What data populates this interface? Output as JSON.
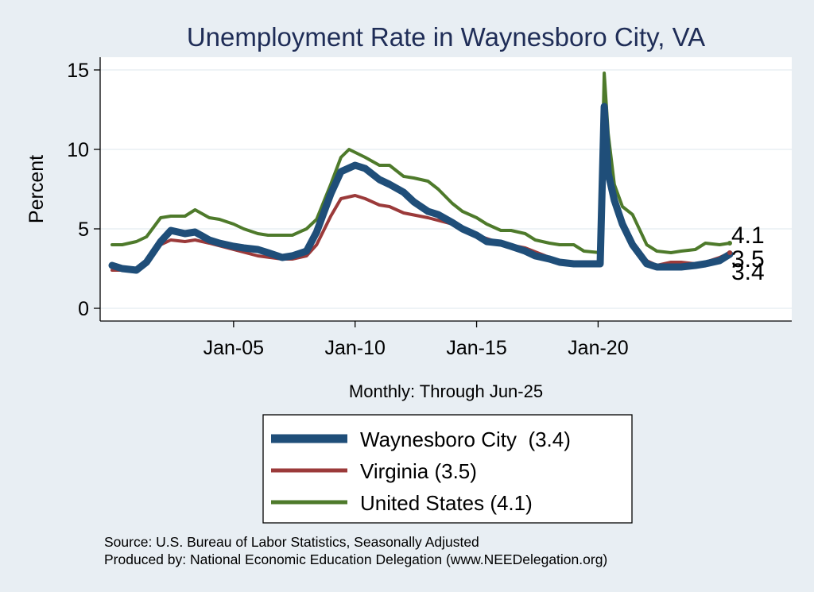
{
  "chart_data": {
    "type": "line",
    "title": "Unemployment Rate in Waynesboro City, VA",
    "subtitle": "Monthly: Through Jun-25",
    "ylabel": "Percent",
    "xlabel": "",
    "ylim": [
      0,
      15
    ],
    "yticks": [
      0,
      5,
      10,
      15
    ],
    "xlim": [
      "2000-01",
      "2025-06"
    ],
    "xticks": [
      {
        "x": "2005-01",
        "label": "Jan-05"
      },
      {
        "x": "2010-01",
        "label": "Jan-10"
      },
      {
        "x": "2015-01",
        "label": "Jan-15"
      },
      {
        "x": "2020-01",
        "label": "Jan-20"
      }
    ],
    "grid": true,
    "legend_position": "bottom",
    "series": [
      {
        "name": "Waynesboro City  (3.4)",
        "color": "#1f4e79",
        "end_label": "3.4",
        "points": [
          [
            "2000-01",
            2.7
          ],
          [
            "2000-06",
            2.5
          ],
          [
            "2001-01",
            2.4
          ],
          [
            "2001-06",
            2.9
          ],
          [
            "2002-01",
            4.2
          ],
          [
            "2002-06",
            4.9
          ],
          [
            "2003-01",
            4.7
          ],
          [
            "2003-06",
            4.8
          ],
          [
            "2004-01",
            4.3
          ],
          [
            "2004-06",
            4.1
          ],
          [
            "2005-01",
            3.9
          ],
          [
            "2005-06",
            3.8
          ],
          [
            "2006-01",
            3.7
          ],
          [
            "2006-06",
            3.5
          ],
          [
            "2007-01",
            3.2
          ],
          [
            "2007-06",
            3.3
          ],
          [
            "2008-01",
            3.6
          ],
          [
            "2008-06",
            4.8
          ],
          [
            "2009-01",
            7.2
          ],
          [
            "2009-06",
            8.6
          ],
          [
            "2010-01",
            9.0
          ],
          [
            "2010-06",
            8.8
          ],
          [
            "2011-01",
            8.1
          ],
          [
            "2011-06",
            7.8
          ],
          [
            "2012-01",
            7.3
          ],
          [
            "2012-06",
            6.7
          ],
          [
            "2013-01",
            6.1
          ],
          [
            "2013-06",
            5.9
          ],
          [
            "2014-01",
            5.4
          ],
          [
            "2014-06",
            5.0
          ],
          [
            "2015-01",
            4.6
          ],
          [
            "2015-06",
            4.2
          ],
          [
            "2016-01",
            4.1
          ],
          [
            "2016-06",
            3.9
          ],
          [
            "2017-01",
            3.6
          ],
          [
            "2017-06",
            3.3
          ],
          [
            "2018-01",
            3.1
          ],
          [
            "2018-06",
            2.9
          ],
          [
            "2019-01",
            2.8
          ],
          [
            "2019-06",
            2.8
          ],
          [
            "2020-02",
            2.8
          ],
          [
            "2020-04",
            12.7
          ],
          [
            "2020-06",
            8.5
          ],
          [
            "2020-09",
            6.8
          ],
          [
            "2021-01",
            5.3
          ],
          [
            "2021-06",
            4.0
          ],
          [
            "2022-01",
            2.8
          ],
          [
            "2022-06",
            2.6
          ],
          [
            "2023-01",
            2.6
          ],
          [
            "2023-06",
            2.6
          ],
          [
            "2024-01",
            2.7
          ],
          [
            "2024-06",
            2.8
          ],
          [
            "2025-01",
            3.0
          ],
          [
            "2025-06",
            3.4
          ]
        ]
      },
      {
        "name": "Virginia (3.5)",
        "color": "#9b3a3a",
        "end_label": "3.5",
        "points": [
          [
            "2000-01",
            2.4
          ],
          [
            "2001-01",
            2.4
          ],
          [
            "2001-06",
            3.0
          ],
          [
            "2002-01",
            4.0
          ],
          [
            "2002-06",
            4.3
          ],
          [
            "2003-01",
            4.2
          ],
          [
            "2003-06",
            4.3
          ],
          [
            "2004-01",
            4.1
          ],
          [
            "2005-01",
            3.7
          ],
          [
            "2006-01",
            3.3
          ],
          [
            "2007-01",
            3.1
          ],
          [
            "2007-06",
            3.1
          ],
          [
            "2008-01",
            3.3
          ],
          [
            "2008-06",
            4.0
          ],
          [
            "2009-01",
            5.8
          ],
          [
            "2009-06",
            6.9
          ],
          [
            "2010-01",
            7.1
          ],
          [
            "2010-06",
            6.9
          ],
          [
            "2011-01",
            6.5
          ],
          [
            "2011-06",
            6.4
          ],
          [
            "2012-01",
            6.0
          ],
          [
            "2013-01",
            5.7
          ],
          [
            "2014-01",
            5.3
          ],
          [
            "2015-01",
            4.6
          ],
          [
            "2016-01",
            4.1
          ],
          [
            "2017-01",
            3.8
          ],
          [
            "2018-01",
            3.2
          ],
          [
            "2018-06",
            2.9
          ],
          [
            "2019-01",
            2.8
          ],
          [
            "2019-06",
            2.7
          ],
          [
            "2020-02",
            2.8
          ],
          [
            "2020-04",
            10.8
          ],
          [
            "2020-06",
            8.5
          ],
          [
            "2020-09",
            6.8
          ],
          [
            "2021-01",
            5.2
          ],
          [
            "2021-06",
            4.0
          ],
          [
            "2022-01",
            3.0
          ],
          [
            "2022-06",
            2.7
          ],
          [
            "2023-01",
            2.9
          ],
          [
            "2023-06",
            2.9
          ],
          [
            "2024-01",
            2.8
          ],
          [
            "2024-06",
            2.9
          ],
          [
            "2025-01",
            3.2
          ],
          [
            "2025-06",
            3.5
          ]
        ]
      },
      {
        "name": "United States (4.1)",
        "color": "#4e7a2b",
        "end_label": "4.1",
        "points": [
          [
            "2000-01",
            4.0
          ],
          [
            "2000-06",
            4.0
          ],
          [
            "2001-01",
            4.2
          ],
          [
            "2001-06",
            4.5
          ],
          [
            "2002-01",
            5.7
          ],
          [
            "2002-06",
            5.8
          ],
          [
            "2003-01",
            5.8
          ],
          [
            "2003-06",
            6.2
          ],
          [
            "2004-01",
            5.7
          ],
          [
            "2004-06",
            5.6
          ],
          [
            "2005-01",
            5.3
          ],
          [
            "2005-06",
            5.0
          ],
          [
            "2006-01",
            4.7
          ],
          [
            "2006-06",
            4.6
          ],
          [
            "2007-01",
            4.6
          ],
          [
            "2007-06",
            4.6
          ],
          [
            "2008-01",
            5.0
          ],
          [
            "2008-06",
            5.6
          ],
          [
            "2009-01",
            7.8
          ],
          [
            "2009-06",
            9.5
          ],
          [
            "2009-10",
            10.0
          ],
          [
            "2010-06",
            9.5
          ],
          [
            "2011-01",
            9.0
          ],
          [
            "2011-06",
            9.0
          ],
          [
            "2012-01",
            8.3
          ],
          [
            "2012-06",
            8.2
          ],
          [
            "2013-01",
            8.0
          ],
          [
            "2013-06",
            7.5
          ],
          [
            "2014-01",
            6.6
          ],
          [
            "2014-06",
            6.1
          ],
          [
            "2015-01",
            5.7
          ],
          [
            "2015-06",
            5.3
          ],
          [
            "2016-01",
            4.9
          ],
          [
            "2016-06",
            4.9
          ],
          [
            "2017-01",
            4.7
          ],
          [
            "2017-06",
            4.3
          ],
          [
            "2018-01",
            4.1
          ],
          [
            "2018-06",
            4.0
          ],
          [
            "2019-01",
            4.0
          ],
          [
            "2019-06",
            3.6
          ],
          [
            "2020-02",
            3.5
          ],
          [
            "2020-04",
            14.8
          ],
          [
            "2020-06",
            11.0
          ],
          [
            "2020-09",
            7.8
          ],
          [
            "2021-01",
            6.4
          ],
          [
            "2021-06",
            5.9
          ],
          [
            "2022-01",
            4.0
          ],
          [
            "2022-06",
            3.6
          ],
          [
            "2023-01",
            3.5
          ],
          [
            "2023-06",
            3.6
          ],
          [
            "2024-01",
            3.7
          ],
          [
            "2024-06",
            4.1
          ],
          [
            "2025-01",
            4.0
          ],
          [
            "2025-06",
            4.1
          ]
        ]
      }
    ]
  },
  "source_line": "Source: U.S. Bureau of Labor Statistics, Seasonally Adjusted",
  "produced_line": "Produced by: National Economic Education Delegation (www.NEEDelegation.org)"
}
